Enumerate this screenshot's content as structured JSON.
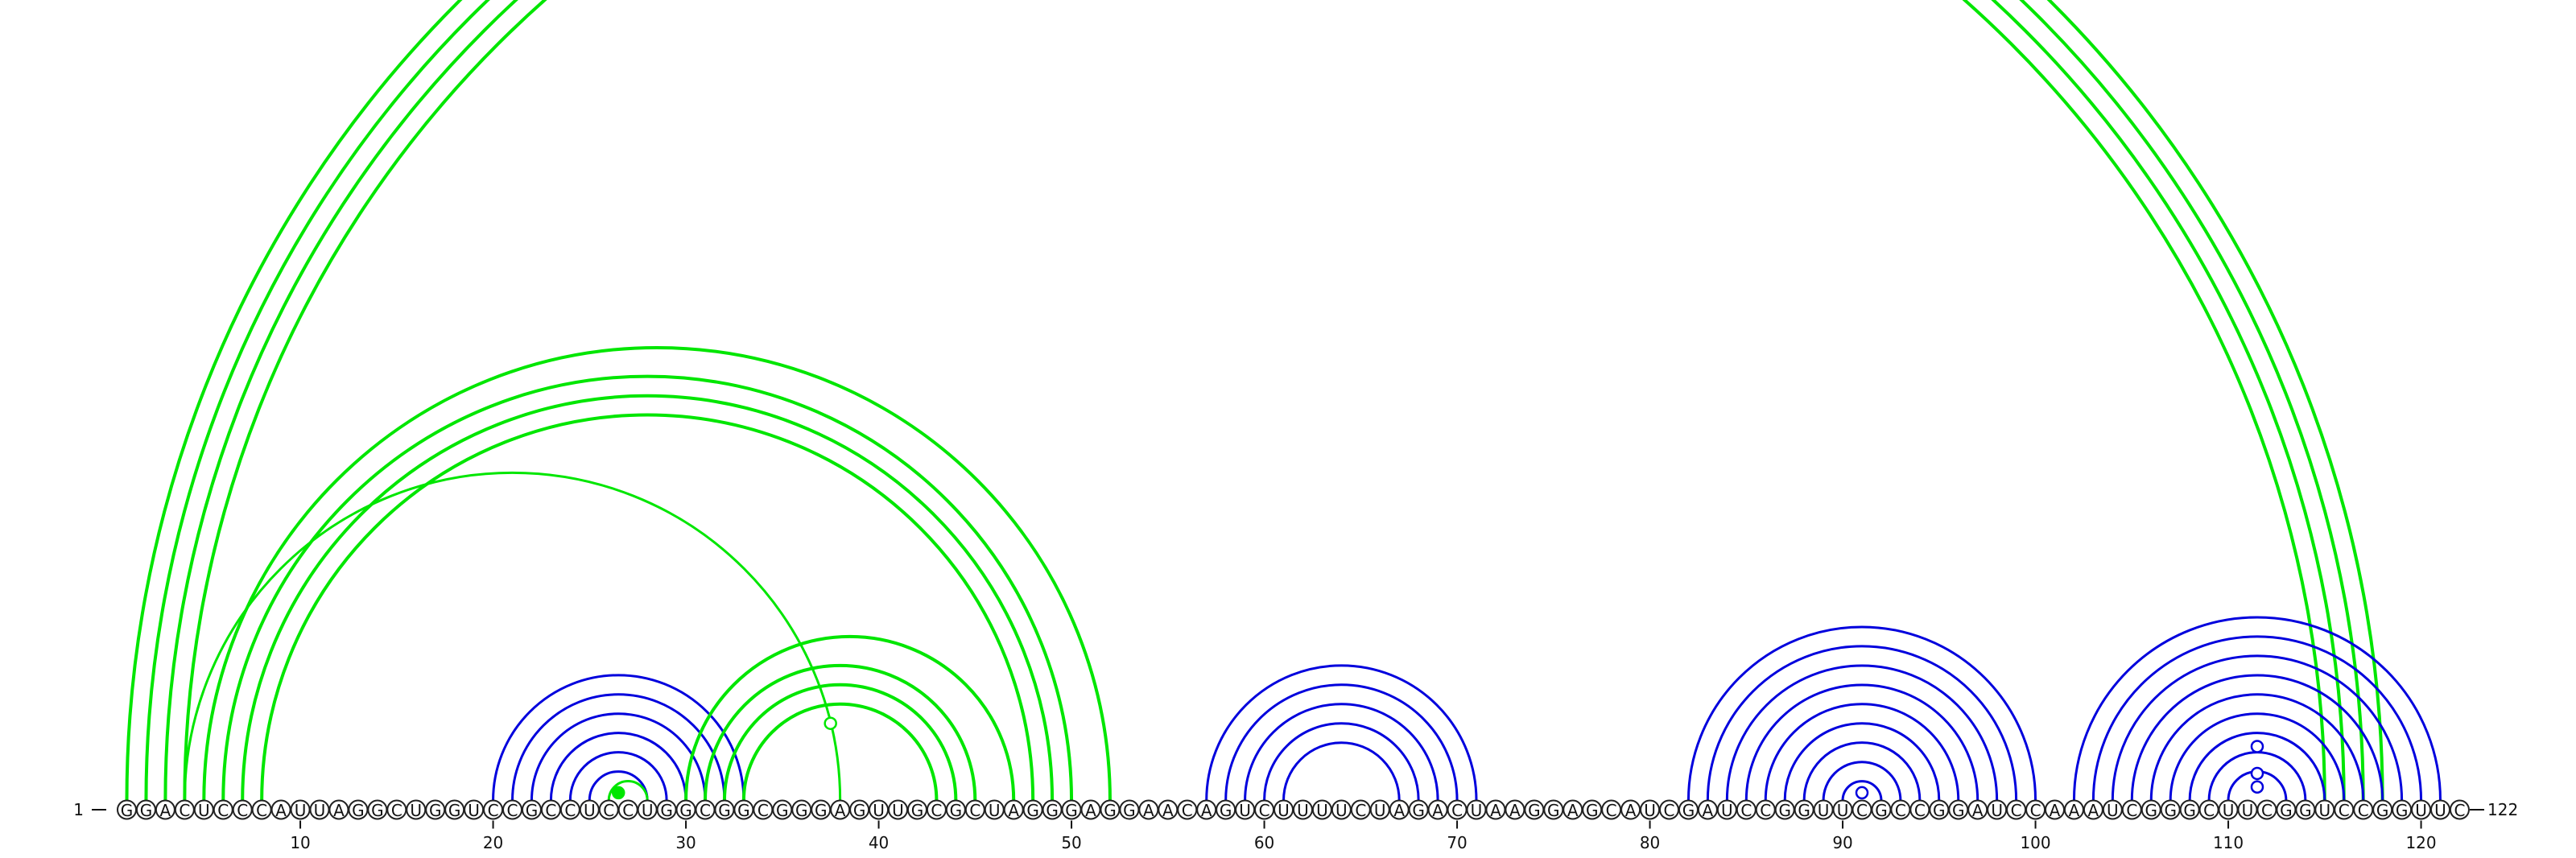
{
  "sequence": "GGACUCCCAUUAGGCUGGUCCGCCUCCUGGCGGCGGGAGUUGCGCUAGGGAGGAACAGUCUUUUCUAGACUAAGGAGCAUCGAUCCGGUUCGCCGGAUCCAAAUCGGGCUUCGGUCCGGUUC",
  "length": 122,
  "start_label": "1",
  "end_label": "122",
  "ticks": [
    "10",
    "20",
    "30",
    "40",
    "50",
    "60",
    "70",
    "80",
    "90",
    "100",
    "110",
    "120"
  ],
  "colors": {
    "green": "#00e600",
    "blue": "#0000dd",
    "outline": "#222222"
  },
  "arc_groups": [
    {
      "color": "green",
      "stroke": 4,
      "pairs": [
        [
          1,
          118
        ],
        [
          2,
          117
        ],
        [
          3,
          116
        ],
        [
          4,
          115
        ]
      ]
    },
    {
      "color": "green",
      "stroke": 4,
      "pairs": [
        [
          5,
          52
        ],
        [
          6,
          50
        ],
        [
          7,
          49
        ],
        [
          8,
          48
        ]
      ]
    },
    {
      "color": "green",
      "stroke": 3,
      "pairs": [
        [
          4,
          38
        ]
      ]
    },
    {
      "color": "blue",
      "stroke": 3,
      "pairs": [
        [
          20,
          33
        ],
        [
          21,
          32
        ],
        [
          22,
          31
        ],
        [
          23,
          30
        ],
        [
          24,
          29
        ],
        [
          25,
          28
        ]
      ]
    },
    {
      "color": "green",
      "stroke": 3,
      "pairs": [
        [
          26,
          28
        ]
      ]
    },
    {
      "color": "green",
      "stroke": 4,
      "pairs": [
        [
          30,
          47
        ],
        [
          31,
          45
        ],
        [
          32,
          44
        ],
        [
          33,
          43
        ]
      ]
    },
    {
      "color": "blue",
      "stroke": 3,
      "pairs": [
        [
          57,
          71
        ],
        [
          58,
          70
        ],
        [
          59,
          69
        ],
        [
          60,
          68
        ],
        [
          61,
          67
        ]
      ]
    },
    {
      "color": "blue",
      "stroke": 3,
      "pairs": [
        [
          82,
          100
        ],
        [
          83,
          99
        ],
        [
          84,
          98
        ],
        [
          85,
          97
        ],
        [
          86,
          96
        ],
        [
          87,
          95
        ],
        [
          88,
          94
        ],
        [
          89,
          93
        ],
        [
          90,
          92
        ]
      ]
    },
    {
      "color": "blue",
      "stroke": 3,
      "pairs": [
        [
          102,
          121
        ],
        [
          103,
          120
        ],
        [
          104,
          119
        ],
        [
          105,
          118
        ],
        [
          106,
          117
        ],
        [
          107,
          116
        ],
        [
          108,
          115
        ],
        [
          109,
          114
        ],
        [
          110,
          113
        ]
      ]
    }
  ],
  "markers": [
    {
      "at": 26.5,
      "level": 0.4,
      "color": "green",
      "filled": true
    },
    {
      "at": 37.5,
      "level": 4.0,
      "color": "green",
      "filled": false
    },
    {
      "at": 91,
      "level": 0.4,
      "color": "blue",
      "filled": false
    },
    {
      "at": 111.5,
      "level": 0.7,
      "color": "blue",
      "filled": false
    },
    {
      "at": 111.5,
      "level": 1.4,
      "color": "blue",
      "filled": false
    },
    {
      "at": 111.5,
      "level": 2.8,
      "color": "blue",
      "filled": false
    }
  ]
}
